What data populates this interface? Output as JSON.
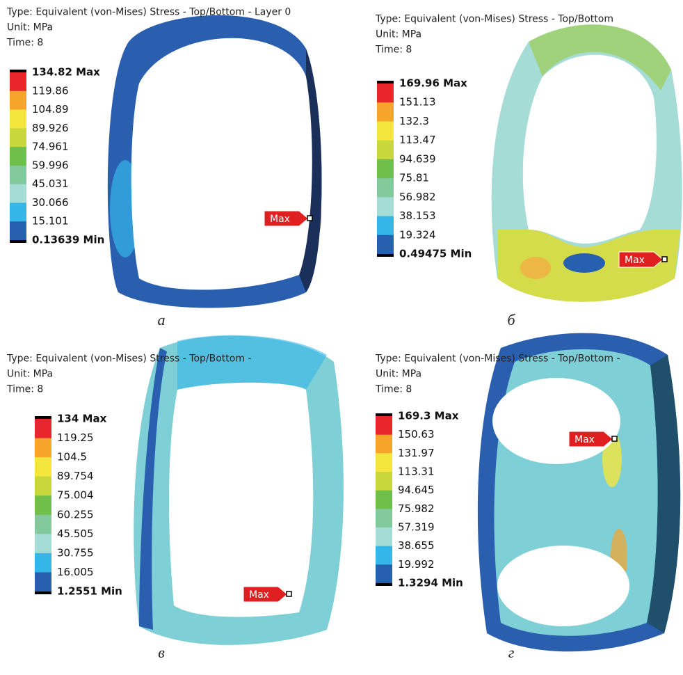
{
  "panels": [
    {
      "header": [
        "Type: Equivalent (von-Mises) Stress - Top/Bottom - Layer 0",
        "Unit: MPa",
        "Time: 8"
      ],
      "legend": [
        "134.82 Max",
        "119.86",
        "104.89",
        "89.926",
        "74.961",
        "59.996",
        "45.031",
        "30.066",
        "15.101",
        "0.13639 Min"
      ],
      "marker": "Max",
      "caption": "а"
    },
    {
      "header": [
        "Type: Equivalent (von-Mises) Stress - Top/Bottom",
        "Unit: MPa",
        "Time: 8"
      ],
      "legend": [
        "169.96 Max",
        "151.13",
        "132.3",
        "113.47",
        "94.639",
        "75.81",
        "56.982",
        "38.153",
        "19.324",
        "0.49475 Min"
      ],
      "marker": "Max",
      "caption": "б"
    },
    {
      "header": [
        "Type: Equivalent (von-Mises) Stress - Top/Bottom -",
        "Unit: MPa",
        "Time: 8"
      ],
      "legend": [
        "134 Max",
        "119.25",
        "104.5",
        "89.754",
        "75.004",
        "60.255",
        "45.505",
        "30.755",
        "16.005",
        "1.2551 Min"
      ],
      "marker": "Max",
      "caption": "в"
    },
    {
      "header": [
        "Type: Equivalent (von-Mises) Stress - Top/Bottom -",
        "Unit: MPa",
        "Time: 8"
      ],
      "legend": [
        "169.3 Max",
        "150.63",
        "131.97",
        "113.31",
        "94.645",
        "75.982",
        "57.319",
        "38.655",
        "19.992",
        "1.3294 Min"
      ],
      "marker": "Max",
      "caption": "г"
    }
  ],
  "legend_colors": [
    "#e8262b",
    "#f6a42a",
    "#f5e63d",
    "#c8d83c",
    "#6fbf4a",
    "#82c99c",
    "#a6dcd6",
    "#35b6e8",
    "#2860b0"
  ]
}
